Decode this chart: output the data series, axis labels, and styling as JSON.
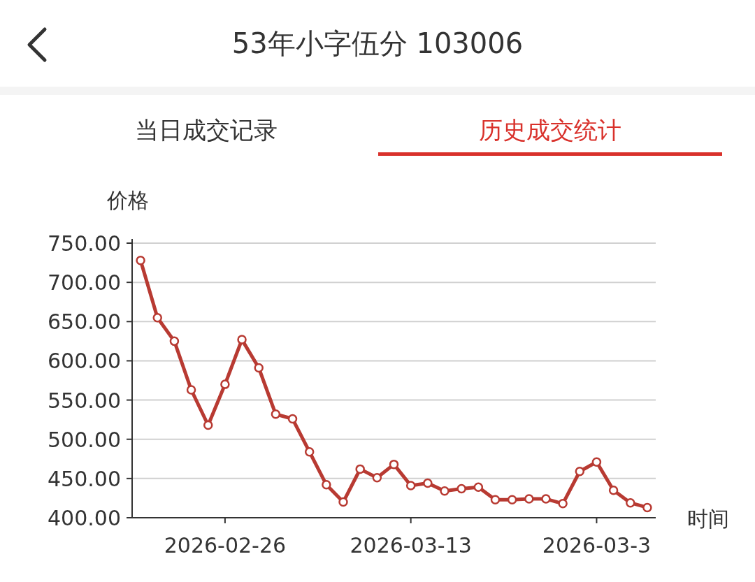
{
  "chart_data": {
    "type": "line",
    "title": "53年小字伍分 103006",
    "annotations": [
      "当日成交记录",
      "历史成交统计"
    ],
    "ylabel": "价格",
    "xlabel": "时间",
    "categories": [
      null,
      null,
      null,
      null,
      null,
      "2026-02-26",
      null,
      null,
      null,
      null,
      null,
      null,
      null,
      null,
      null,
      null,
      "2026-03-13",
      null,
      null,
      null,
      null,
      null,
      null,
      null,
      null,
      null,
      null,
      "2026-03-3",
      null,
      null,
      null
    ],
    "series": [
      {
        "color": "#b83a32",
        "values": [
          728,
          655,
          625,
          563,
          518,
          570,
          627,
          591,
          532,
          526,
          484,
          442,
          420,
          462,
          451,
          468,
          441,
          444,
          434,
          437,
          439,
          423,
          423,
          424,
          424,
          418,
          459,
          471,
          435,
          419,
          413
        ]
      }
    ],
    "ylim": [
      400,
      750
    ],
    "yticks": [
      {
        "value": 400,
        "label": "400.00"
      },
      {
        "value": 450,
        "label": "450.00"
      },
      {
        "value": 500,
        "label": "500.00"
      },
      {
        "value": 550,
        "label": "550.00"
      },
      {
        "value": 600,
        "label": "600.00"
      },
      {
        "value": 650,
        "label": "650.00"
      },
      {
        "value": 700,
        "label": "700.00"
      },
      {
        "value": 750,
        "label": "750.00"
      }
    ],
    "grid": "y",
    "marker": "circle"
  }
}
